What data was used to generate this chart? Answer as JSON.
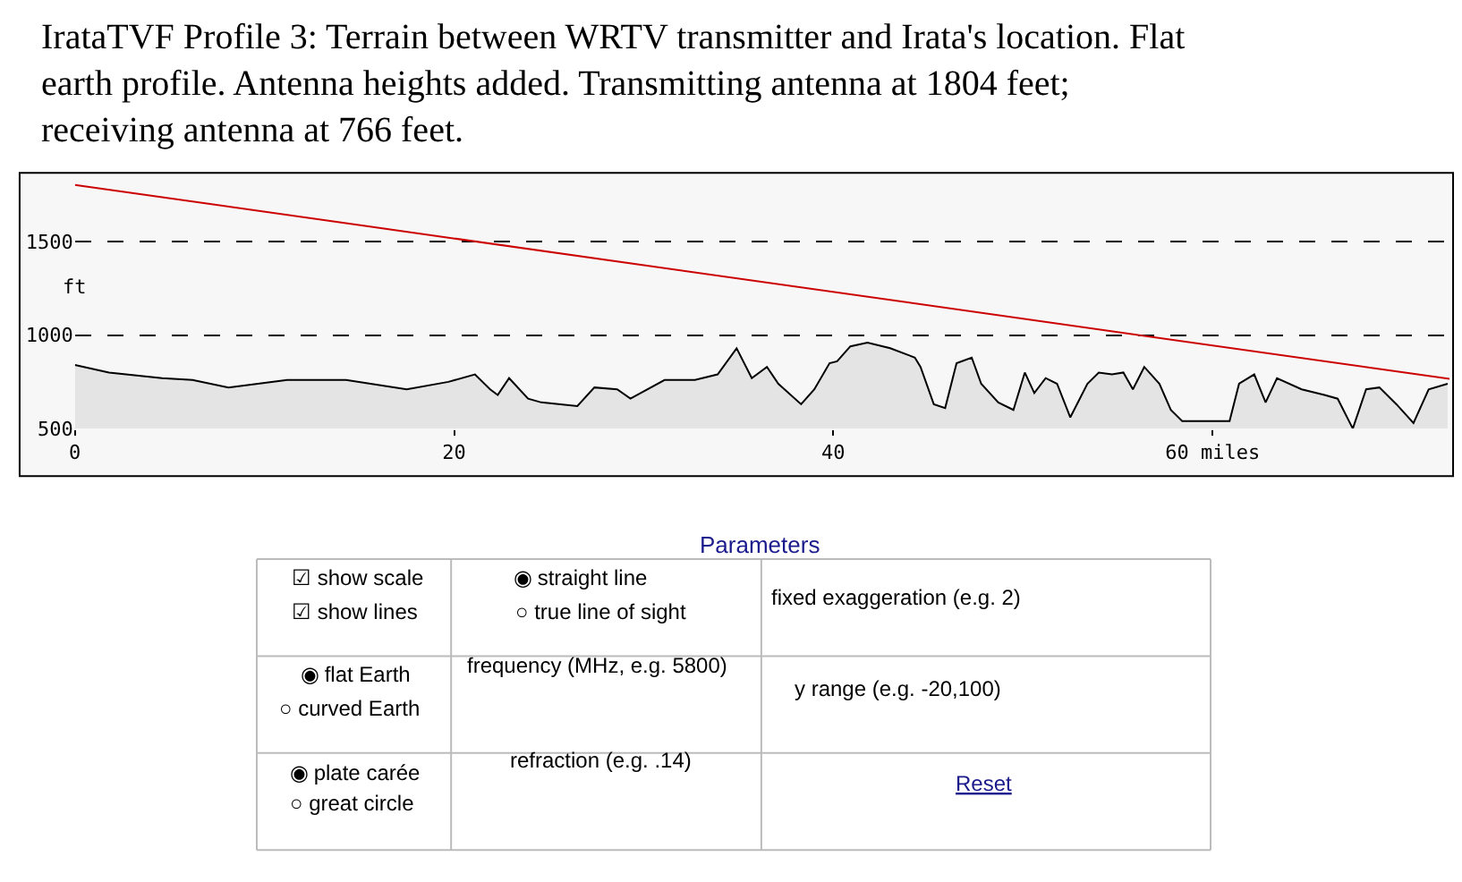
{
  "chart_data": [
    {
      "type": "area",
      "title": "IrataTVF Profile 3: Terrain between WRTV transmitter and Irata's location. Flat earth profile. Antenna heights added. Transmitting antenna at 1804 feet; receiving antenna at 766 feet.",
      "ylabel": "ft",
      "xlim": [
        0,
        72.5
      ],
      "ylim": [
        500,
        1850
      ],
      "xticks": [
        0,
        20,
        40,
        {
          "value": 60,
          "label": "60 miles"
        }
      ],
      "yticks": [
        500,
        1000,
        1500
      ],
      "grid": "y",
      "series": [
        {
          "color": "#000000",
          "x": [
            0,
            1.8,
            4.6,
            6.2,
            8.1,
            11.2,
            14.3,
            17.5,
            19.7,
            21.1,
            21.9,
            22.3,
            22.9,
            23.9,
            24.6,
            26.5,
            27.4,
            28.6,
            29.3,
            31.1,
            32.7,
            33.9,
            34.9,
            35.7,
            36.5,
            37.1,
            38.3,
            39.0,
            39.8,
            40.2,
            40.9,
            41.8,
            43.0,
            44.3,
            44.6,
            45.3,
            45.9,
            46.5,
            47.3,
            47.8,
            48.7,
            49.5,
            50.1,
            50.6,
            51.2,
            51.8,
            52.5,
            53.4,
            54.0,
            54.7,
            55.3,
            55.8,
            56.4,
            57.2,
            57.8,
            58.4,
            60.9,
            61.4,
            62.2,
            62.8,
            63.4,
            64.7,
            65.9,
            66.6,
            67.4,
            68.1,
            68.8,
            69.7,
            70.6,
            71.4,
            72.4
          ],
          "values": [
            840,
            800,
            770,
            760,
            720,
            760,
            760,
            710,
            750,
            790,
            710,
            680,
            770,
            660,
            640,
            620,
            720,
            710,
            660,
            760,
            760,
            790,
            930,
            770,
            830,
            740,
            630,
            710,
            850,
            860,
            940,
            960,
            930,
            880,
            830,
            630,
            610,
            850,
            880,
            740,
            640,
            600,
            800,
            690,
            770,
            740,
            560,
            740,
            800,
            790,
            800,
            710,
            830,
            740,
            600,
            540,
            540,
            740,
            790,
            640,
            770,
            710,
            680,
            660,
            500,
            710,
            720,
            630,
            530,
            710,
            740
          ]
        },
        {
          "type": "line",
          "color": "#cc0000",
          "x": [
            0,
            72.5
          ],
          "values": [
            1804,
            766
          ]
        }
      ]
    },
    {
      "type": "other",
      "title": "Parameters",
      "annotations": [
        "☑ show scale",
        "☑ show lines",
        "◉ straight line",
        "○ true line of sight",
        "fixed exaggeration (e.g. 2)",
        "◉ flat Earth",
        "○ curved Earth",
        "frequency (MHz, e.g. 5800)",
        "y range (e.g. -20,100)",
        "◉ plate carée",
        "○ great circle",
        "refraction (e.g. .14)",
        "Reset"
      ]
    }
  ]
}
